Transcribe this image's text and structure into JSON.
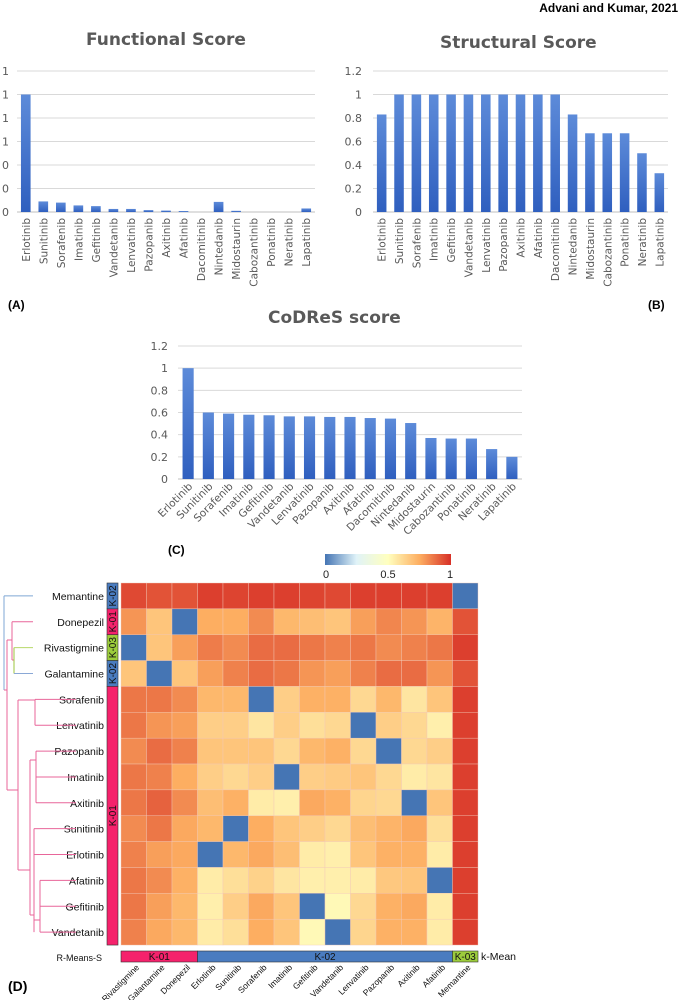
{
  "author": "Advani and Kumar, 2021",
  "panels": {
    "a": "(A)",
    "b": "(B)",
    "c": "(C)",
    "d": "(D)"
  },
  "chart_data": [
    {
      "type": "bar",
      "title": "Functional Score",
      "categories": [
        "Erlotinib",
        "Sunitinib",
        "Sorafenib",
        "Imatinib",
        "Gefitinib",
        "Vandetanib",
        "Lenvatinib",
        "Pazopanib",
        "Axitinib",
        "Afatinib",
        "Dacomitinib",
        "Nintedanib",
        "Midostaurin",
        "Cabozantinib",
        "Ponatinib",
        "Neratinib",
        "Lapatinib"
      ],
      "values": [
        1,
        0.09,
        0.08,
        0.056,
        0.05,
        0.026,
        0.026,
        0.016,
        0.012,
        0.008,
        0,
        0.086,
        0.01,
        0,
        0,
        0,
        0.03
      ],
      "ylim": [
        0,
        1.2
      ],
      "ytick_labels": [
        "0",
        "0",
        "0",
        "1",
        "1",
        "1",
        "1"
      ],
      "label_rotation": "vertical",
      "grid": true
    },
    {
      "type": "bar",
      "title": "Structural Score",
      "categories": [
        "Erlotinib",
        "Sunitinib",
        "Sorafenib",
        "Imatinib",
        "Gefitinib",
        "Vandetanib",
        "Lenvatinib",
        "Pazopanib",
        "Axitinib",
        "Afatinib",
        "Dacomitinib",
        "Nintedanib",
        "Midostaurin",
        "Cabozantinib",
        "Ponatinib",
        "Neratinib",
        "Lapatinib"
      ],
      "values": [
        0.83,
        1,
        1,
        1,
        1,
        1,
        1,
        1,
        1,
        1,
        1,
        0.83,
        0.67,
        0.67,
        0.67,
        0.5,
        0.33
      ],
      "ylim": [
        0,
        1.2
      ],
      "ytick_labels": [
        "0",
        "0.2",
        "0.4",
        "0.6",
        "0.8",
        "1",
        "1.2"
      ],
      "label_rotation": "vertical",
      "grid": true
    },
    {
      "type": "bar",
      "title": "CoDReS score",
      "categories": [
        "Erlotinib",
        "Sunitinib",
        "Sorafenib",
        "Imatinib",
        "Gefitinib",
        "Vandetanib",
        "Lenvatinib",
        "Pazopanib",
        "Axitinib",
        "Afatinib",
        "Dacomitinib",
        "Nintedanib",
        "Midostaurin",
        "Cabozantinib",
        "Ponatinib",
        "Neratinib",
        "Lapatinib"
      ],
      "values": [
        1,
        0.6,
        0.59,
        0.58,
        0.575,
        0.565,
        0.565,
        0.56,
        0.56,
        0.55,
        0.545,
        0.505,
        0.37,
        0.365,
        0.365,
        0.27,
        0.2
      ],
      "ylim": [
        0,
        1.2
      ],
      "ytick_labels": [
        "0",
        "0.2",
        "0.4",
        "0.6",
        "0.8",
        "1",
        "1.2"
      ],
      "label_rotation": "diagonal",
      "grid": true
    },
    {
      "type": "heatmap",
      "colorbar": {
        "ticks": [
          "0",
          "0.5",
          "1"
        ],
        "range": [
          0,
          1
        ],
        "colors": [
          "#4575b4",
          "#e0f3f8",
          "#ffffbf",
          "#fdae61",
          "#d73027"
        ]
      },
      "rows": [
        "Memantine",
        "Donepezil",
        "Rivastigmine",
        "Galantamine",
        "Sorafenib",
        "Lenvatinib",
        "Pazopanib",
        "Imatinib",
        "Axitinib",
        "Sunitinib",
        "Erlotinib",
        "Afatinib",
        "Gefitinib",
        "Vandetanib"
      ],
      "row_clusters": [
        "K-02",
        "K-01",
        "K-03",
        "K-02",
        "K-01",
        "K-01",
        "K-01",
        "K-01",
        "K-01",
        "K-01",
        "K-01",
        "K-01",
        "K-01",
        "K-01"
      ],
      "columns": [
        "Rivastigmine",
        "Galantamine",
        "Donepezil",
        "Erlotinib",
        "Sunitinib",
        "Sorafenib",
        "Imatinib",
        "Gefitinib",
        "Vandetanib",
        "Lenvatinib",
        "Pazopanib",
        "Axitinib",
        "Afatinib",
        "Memantine"
      ],
      "column_clusters": [
        "K-01",
        "K-01",
        "K-01",
        "K-02",
        "K-02",
        "K-02",
        "K-02",
        "K-02",
        "K-02",
        "K-02",
        "K-02",
        "K-02",
        "K-02",
        "K-03"
      ],
      "column_cluster_label": "k-Mean",
      "row_cluster_label": "R-Means-S",
      "cluster_colors": {
        "K-01": "#f5226c",
        "K-02": "#4a7cc0",
        "K-03": "#9ccc3c"
      },
      "values": [
        [
          0.95,
          0.93,
          0.93,
          0.97,
          0.96,
          0.97,
          0.97,
          0.96,
          0.95,
          0.97,
          0.97,
          0.97,
          0.97,
          0
        ],
        [
          0.8,
          0.68,
          0,
          0.75,
          0.75,
          0.82,
          0.72,
          0.7,
          0.68,
          0.78,
          0.83,
          0.8,
          0.73,
          0.93
        ],
        [
          0,
          0.68,
          0.78,
          0.85,
          0.82,
          0.88,
          0.88,
          0.86,
          0.84,
          0.86,
          0.82,
          0.84,
          0.86,
          0.97
        ],
        [
          0.68,
          0,
          0.68,
          0.78,
          0.84,
          0.88,
          0.86,
          0.8,
          0.78,
          0.84,
          0.88,
          0.88,
          0.8,
          0.93
        ],
        [
          0.86,
          0.86,
          0.82,
          0.72,
          0.72,
          0,
          0.65,
          0.74,
          0.74,
          0.62,
          0.72,
          0.58,
          0.68,
          0.97
        ],
        [
          0.86,
          0.8,
          0.78,
          0.65,
          0.65,
          0.58,
          0.65,
          0.6,
          0.62,
          0,
          0.65,
          0.62,
          0.55,
          0.97
        ],
        [
          0.82,
          0.88,
          0.84,
          0.68,
          0.68,
          0.68,
          0.62,
          0.72,
          0.74,
          0.62,
          0,
          0.62,
          0.65,
          0.97
        ],
        [
          0.86,
          0.84,
          0.75,
          0.65,
          0.62,
          0.65,
          0,
          0.65,
          0.66,
          0.68,
          0.62,
          0.56,
          0.58,
          0.97
        ],
        [
          0.86,
          0.9,
          0.82,
          0.7,
          0.74,
          0.56,
          0.55,
          0.76,
          0.74,
          0.63,
          0.62,
          0,
          0.68,
          0.97
        ],
        [
          0.82,
          0.86,
          0.76,
          0.72,
          0,
          0.75,
          0.68,
          0.65,
          0.62,
          0.7,
          0.73,
          0.76,
          0.6,
          0.97
        ],
        [
          0.84,
          0.78,
          0.76,
          0,
          0.72,
          0.76,
          0.7,
          0.56,
          0.55,
          0.68,
          0.74,
          0.74,
          0.56,
          0.97
        ],
        [
          0.86,
          0.82,
          0.74,
          0.56,
          0.6,
          0.64,
          0.58,
          0.55,
          0.55,
          0.56,
          0.67,
          0.68,
          0,
          0.97
        ],
        [
          0.86,
          0.78,
          0.72,
          0.55,
          0.65,
          0.76,
          0.68,
          0,
          0.52,
          0.62,
          0.74,
          0.76,
          0.56,
          0.97
        ],
        [
          0.84,
          0.76,
          0.72,
          0.56,
          0.6,
          0.75,
          0.68,
          0.52,
          0,
          0.63,
          0.74,
          0.74,
          0.56,
          0.97
        ]
      ]
    }
  ]
}
